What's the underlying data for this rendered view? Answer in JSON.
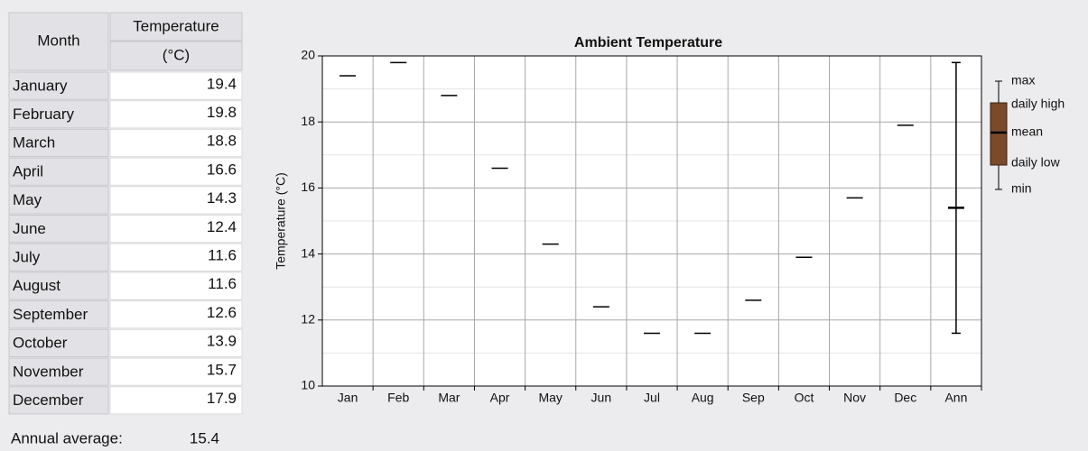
{
  "table": {
    "headers": [
      "Month",
      "Temperature",
      "(°C)"
    ],
    "rows": [
      [
        "January",
        19.4
      ],
      [
        "February",
        19.8
      ],
      [
        "March",
        18.8
      ],
      [
        "April",
        16.6
      ],
      [
        "May",
        14.3
      ],
      [
        "June",
        12.4
      ],
      [
        "July",
        11.6
      ],
      [
        "August",
        11.6
      ],
      [
        "September",
        12.6
      ],
      [
        "October",
        13.9
      ],
      [
        "November",
        15.7
      ],
      [
        "December",
        17.9
      ]
    ],
    "annual": {
      "label": "Annual average:",
      "value": 15.4
    }
  },
  "chart_data": {
    "type": "range",
    "title": "Ambient Temperature",
    "y_label": "Temperature (°C)",
    "categories": [
      "Jan",
      "Feb",
      "Mar",
      "Apr",
      "May",
      "Jun",
      "Jul",
      "Aug",
      "Sep",
      "Oct",
      "Nov",
      "Dec",
      "Ann"
    ],
    "values": [
      19.4,
      19.8,
      18.8,
      16.6,
      14.3,
      12.4,
      11.6,
      11.6,
      12.6,
      13.9,
      15.7,
      17.9,
      15.4
    ],
    "annual_range": {
      "min": 11.6,
      "max": 19.8
    },
    "ylim": [
      10,
      20
    ],
    "yticks": [
      10,
      12,
      14,
      16,
      18,
      20
    ],
    "minor_yticks": [
      11,
      13,
      15,
      17,
      19
    ],
    "grid": true,
    "legend": {
      "labels": [
        "max",
        "daily high",
        "mean",
        "daily low",
        "min"
      ],
      "color": "#7b4a2a"
    }
  }
}
